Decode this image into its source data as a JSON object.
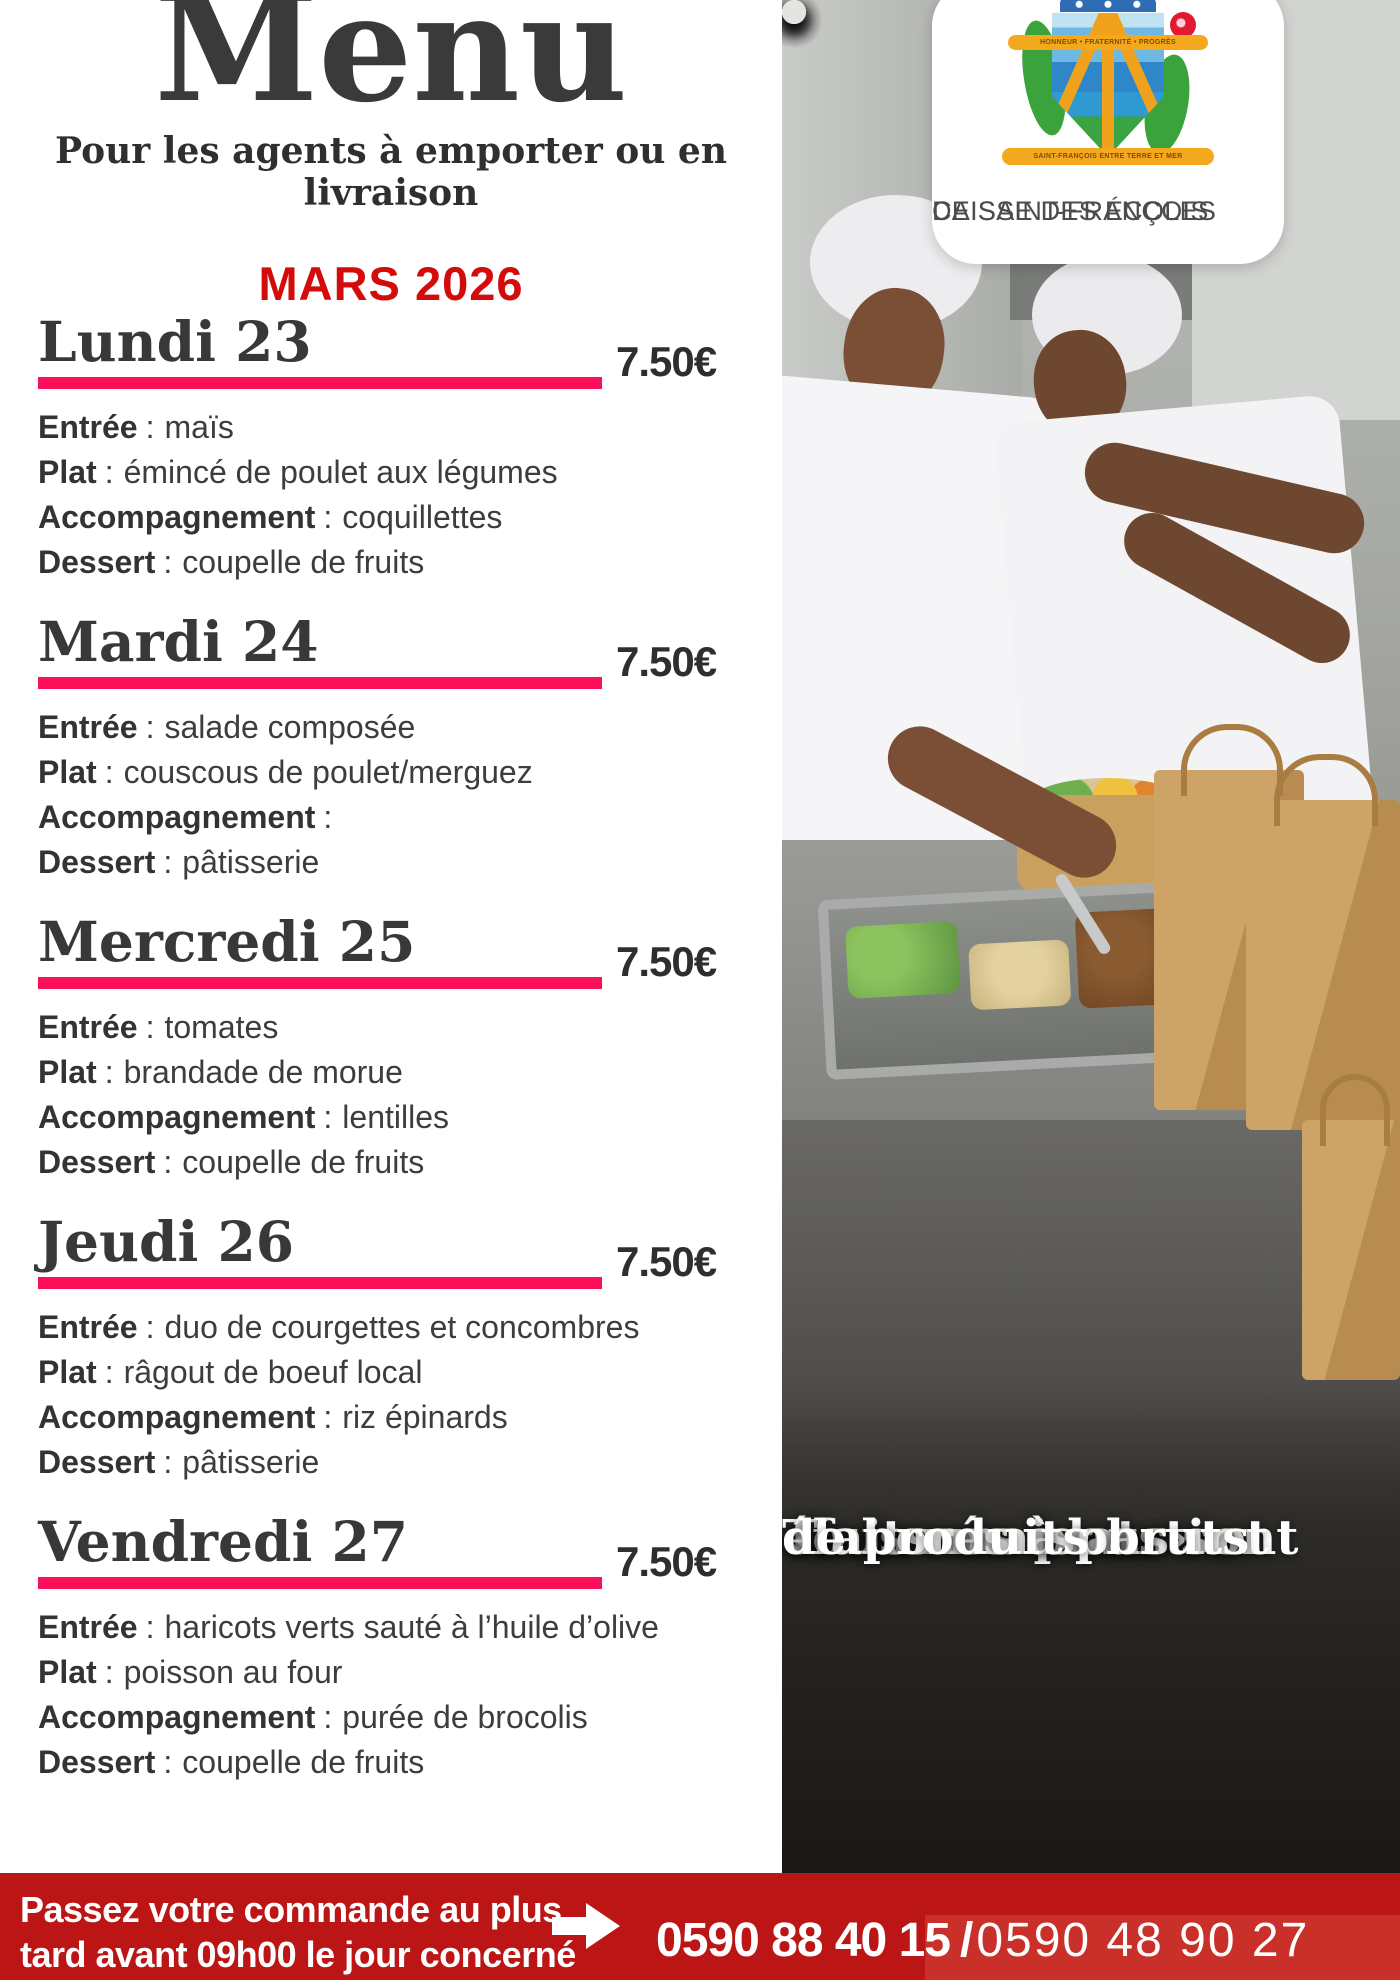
{
  "header": {
    "title": "Menu",
    "subtitle": "Pour les agents à emporter ou en livraison",
    "month": "MARS 2026"
  },
  "menu": {
    "separator": ":",
    "labels": {
      "entree": "Entrée",
      "plat": "Plat",
      "accompagnement": "Accompagnement",
      "dessert": "Dessert"
    },
    "days": [
      {
        "name": "Lundi 23",
        "price": "7.50€",
        "entree": "maïs",
        "plat": "émincé de poulet aux légumes",
        "accompagnement": "coquillettes",
        "dessert": "coupelle de fruits"
      },
      {
        "name": "Mardi 24",
        "price": "7.50€",
        "entree": "salade composée",
        "plat": "couscous de poulet/merguez",
        "accompagnement": "",
        "dessert": "pâtisserie"
      },
      {
        "name": "Mercredi 25",
        "price": "7.50€",
        "entree": "tomates",
        "plat": "brandade de morue",
        "accompagnement": "lentilles",
        "dessert": "coupelle de fruits"
      },
      {
        "name": "Jeudi 26",
        "price": "7.50€",
        "entree": "duo de courgettes et concombres",
        "plat": "râgout de boeuf local",
        "accompagnement": "riz épinards",
        "dessert": "pâtisserie"
      },
      {
        "name": "Vendredi 27",
        "price": "7.50€",
        "entree": "haricots verts sauté à l’huile d’olive",
        "plat": "poisson au four",
        "accompagnement": "purée de brocolis",
        "dessert": "coupelle de fruits"
      }
    ]
  },
  "logo": {
    "org_line1": "CAISSE DES ÉCOLES",
    "org_line2": "DE SAINT-FRANÇOIS",
    "crest_motto_top": "HONNEUR • FRATERNITÉ • PROGRÈS",
    "crest_motto_bottom": "SAINT-FRANÇOIS ENTRE TERRE ET MER"
  },
  "photo_caption": {
    "lines": [
      "Tous nos plats sont",
      "«faits maisons» et",
      "élaborés à partir",
      "de produits bruts"
    ]
  },
  "footer": {
    "notice_line1": "Passez votre commande au plus",
    "notice_line2": "tard avant 09h00 le jour concerné",
    "arrow_icon": "right-arrow",
    "phone1": "0590 88 40 15",
    "separator": "/",
    "phone2": "0590 48 90 27"
  },
  "colors": {
    "accent_pink": "#fa1058",
    "month_red": "#d30b0b",
    "banner_red": "#bb1516",
    "banner_red_light": "#c93029",
    "kraft_brown": "#c79b5e",
    "text_dark": "#3a3a3a"
  }
}
